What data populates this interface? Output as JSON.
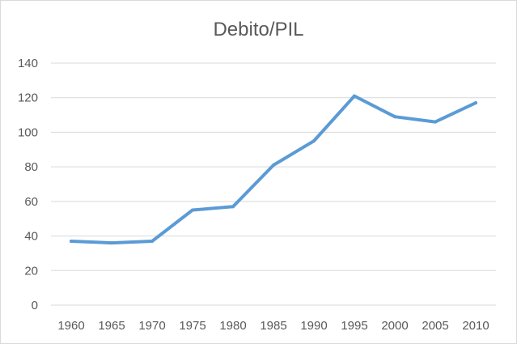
{
  "chart_data": {
    "type": "line",
    "title": "Debito/PIL",
    "xlabel": "",
    "ylabel": "",
    "x": [
      "1960",
      "1965",
      "1970",
      "1975",
      "1980",
      "1985",
      "1990",
      "1995",
      "2000",
      "2005",
      "2010"
    ],
    "series": [
      {
        "values": [
          37,
          36,
          37,
          55,
          57,
          81,
          95,
          121,
          109,
          106,
          117
        ]
      }
    ],
    "ylim": [
      0,
      140
    ],
    "yticks": [
      0,
      20,
      40,
      60,
      80,
      100,
      120,
      140
    ],
    "grid": true,
    "legend": "none",
    "colors": {
      "line": "#5b9bd5",
      "grid": "#d9d9d9",
      "text": "#595959"
    }
  }
}
